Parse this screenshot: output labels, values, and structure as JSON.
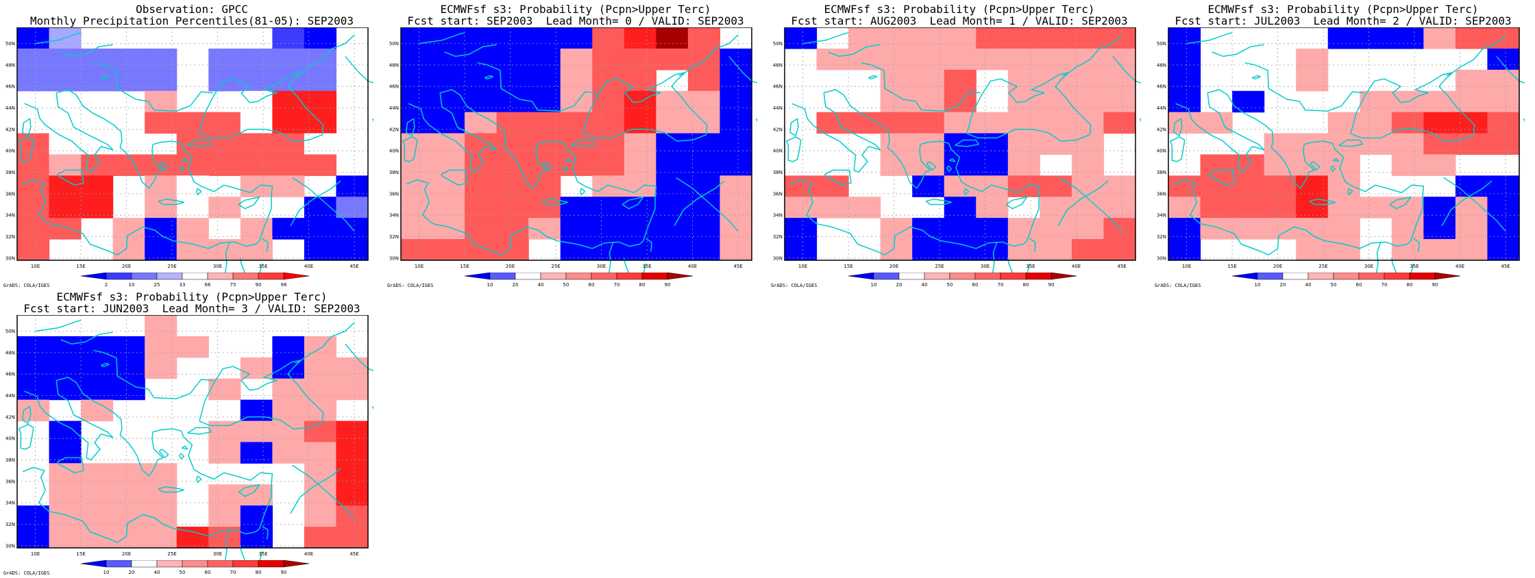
{
  "credit": "GrADS: COLA/IGES",
  "x_ticks": [
    "10E",
    "15E",
    "20E",
    "25E",
    "30E",
    "35E",
    "40E",
    "45E"
  ],
  "y_ticks": [
    "30N",
    "32N",
    "34N",
    "36N",
    "38N",
    "40N",
    "42N",
    "44N",
    "46N",
    "48N",
    "50N"
  ],
  "obs_colorbar": {
    "labels": [
      "2",
      "10",
      "25",
      "33",
      "66",
      "75",
      "90",
      "98"
    ],
    "colors": [
      "#0000ff",
      "#3c3cff",
      "#7878ff",
      "#b4b4ff",
      "#ffffff",
      "#ffb4b4",
      "#ff7878",
      "#ff3c3c",
      "#ff0000"
    ]
  },
  "prob_colorbar": {
    "labels": [
      "10",
      "20",
      "40",
      "50",
      "60",
      "70",
      "80",
      "90"
    ],
    "colors": [
      "#0000ff",
      "#5a5aff",
      "#ffffff",
      "#ffb4b4",
      "#ff8c8c",
      "#ff6464",
      "#ff3c3c",
      "#e60000",
      "#b00000"
    ]
  },
  "panels": [
    {
      "title1": "Observation: GPCC",
      "title2": "Monthly Precipitation Percentiles(81-05): SEP2003",
      "scale": "obs",
      "grid": [
        "bw......cb.",
        "ooooo.oooo.",
        "ooooo.oooo.",
        "....p..qss.",
        "....rrrqss.",
        "rqq..rrrrq.",
        "rprrrrrrrr.",
        "rss.pq.pp.b",
        "rss.p.p..bo",
        "rr.pbp.pbbb",
        "r..pbppp.bb"
      ]
    },
    {
      "title1": "ECMWFsf s3: Probability (Pcpn>Upper Terc)",
      "title2": "Fcst start: SEP2003  Lead Month= 0 / VALID: SEP2003",
      "scale": "prob",
      "grid": [
        "bbbbbbrsxr.",
        "bbbbbprrrrb",
        "bbbbbprr.rb",
        "bbbbbprsppb",
        "bbprrrrsppb",
        "pprrrrrpbbb",
        "pprrrrrpbbb",
        "pprrr.ppbbp",
        "pprrrbbbbbp",
        "pprrpbbbbbp",
        "rrrr.bbbbbp"
      ]
    },
    {
      "title1": "ECMWFsf s3: Probability (Pcpn>Upper Terc)",
      "title2": "Fcst start: AUG2003  Lead Month= 1 / VALID: SEP2003",
      "scale": "prob",
      "grid": [
        "b.pppprrrrr",
        ".pppppppppp",
        "...ppr.pppp",
        "...ppr.pppp",
        ".rrrrpppppr",
        "...ppbbppp.",
        "...ppbbp.p.",
        "rr..bpprrpp",
        "ppp..bp.ppp",
        "b..pbbbpppr",
        "b..pbbbpprr"
      ]
    },
    {
      "title1": "ECMWFsf s3: Probability (Pcpn>Upper Terc)",
      "title2": "Fcst start: JUL2003  Lead Month= 2 / VALID: SEP2003",
      "scale": "prob",
      "grid": [
        "b....bbbprr",
        "b...p.....b",
        "b...p....pp",
        "b.b...ppppp",
        "pp...pprssr",
        "...ppppprrr",
        ".rrppp.pp..",
        "rrrrsp...bb",
        "prrrspppbpb",
        "bppppp.pbpb",
        "b...pp.pppb"
      ]
    },
    {
      "title1": "ECMWFsf s3: Probability (Pcpn>Upper Terc)",
      "title2": "Fcst start: JUN2003  Lead Month= 3 / VALID: SEP2003",
      "scale": "prob",
      "grid": [
        "....p......",
        "bbbbpp..bp.",
        "bbbbp..pbpp",
        "bbbb..p.ppp",
        "p.p....bpp.",
        ".b....ppprs",
        ".b....pbpps",
        ".pppp....ps",
        ".pppp.pp.ps",
        "bpppp.pb.pr",
        "bppppsrb.rr"
      ]
    }
  ]
}
